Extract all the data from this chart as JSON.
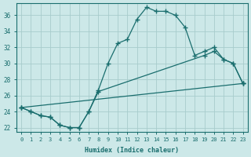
{
  "xlabel": "Humidex (Indice chaleur)",
  "bg_color": "#cce8e8",
  "line_color": "#1a6e6e",
  "grid_color": "#a8cccc",
  "xlim": [
    -0.5,
    23.5
  ],
  "ylim": [
    21.5,
    37.5
  ],
  "xticks": [
    0,
    1,
    2,
    3,
    4,
    5,
    6,
    7,
    8,
    9,
    10,
    11,
    12,
    13,
    14,
    15,
    16,
    17,
    18,
    19,
    20,
    21,
    22,
    23
  ],
  "yticks": [
    22,
    24,
    26,
    28,
    30,
    32,
    34,
    36
  ],
  "line1_x": [
    0,
    1,
    2,
    3,
    4,
    5,
    6,
    7,
    8,
    9,
    10,
    11,
    12,
    13,
    14,
    15,
    16,
    17,
    18,
    19,
    20,
    21,
    22,
    23
  ],
  "line1_y": [
    24.5,
    24.0,
    23.5,
    23.3,
    22.3,
    22.0,
    22.0,
    24.0,
    26.7,
    30.0,
    32.5,
    33.0,
    35.5,
    37.0,
    36.5,
    36.5,
    36.0,
    34.5,
    31.0,
    31.5,
    32.0,
    30.5,
    30.0,
    27.5
  ],
  "line2_x": [
    0,
    23
  ],
  "line2_y": [
    24.5,
    27.5
  ],
  "line3_x": [
    0,
    1,
    2,
    3,
    4,
    5,
    6,
    7,
    8,
    19,
    20,
    21,
    22,
    23
  ],
  "line3_y": [
    24.5,
    24.0,
    23.5,
    23.3,
    22.3,
    22.0,
    22.0,
    24.0,
    26.5,
    31.0,
    31.5,
    30.5,
    30.0,
    27.5
  ],
  "figsize": [
    3.2,
    2.0
  ],
  "dpi": 100
}
